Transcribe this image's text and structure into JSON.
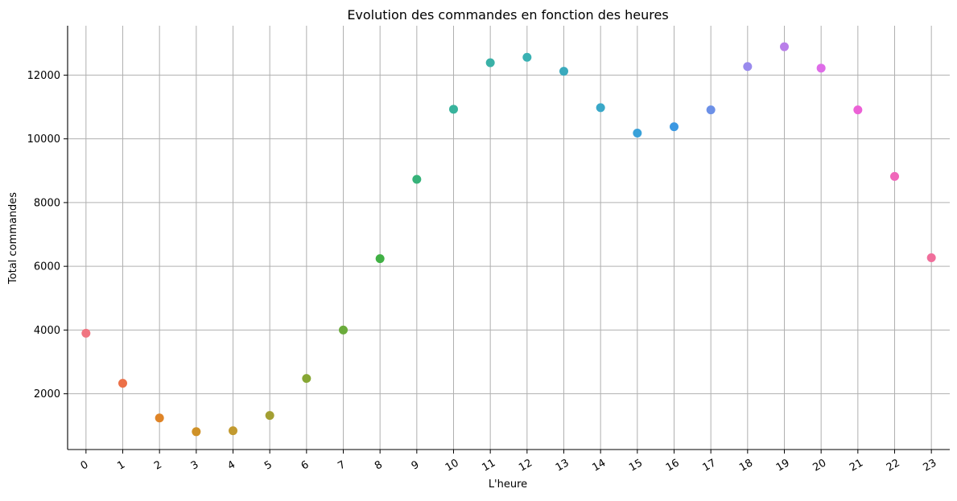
{
  "chart_data": {
    "type": "scatter",
    "title": "Evolution des commandes en fonction des heures",
    "xlabel": "L'heure",
    "ylabel": "Total  commandes",
    "x": [
      "0",
      "1",
      "2",
      "3",
      "4",
      "5",
      "6",
      "7",
      "8",
      "9",
      "10",
      "11",
      "12",
      "13",
      "14",
      "15",
      "16",
      "17",
      "18",
      "19",
      "20",
      "21",
      "22",
      "23"
    ],
    "y": [
      3900,
      2330,
      1240,
      810,
      840,
      1320,
      2480,
      4000,
      6240,
      8730,
      10930,
      12390,
      12560,
      12120,
      10980,
      10180,
      10380,
      10910,
      12270,
      12890,
      12220,
      10910,
      8820,
      6270
    ],
    "colors": [
      "#f07581",
      "#ec7048",
      "#df8427",
      "#cf9127",
      "#c29a2f",
      "#a39f32",
      "#86a633",
      "#6aab3b",
      "#40b044",
      "#36b279",
      "#38b39c",
      "#3ab1a7",
      "#3ab1b3",
      "#3aaabd",
      "#3aa8c8",
      "#39a1d9",
      "#3b98e2",
      "#6c90e7",
      "#998aed",
      "#b97ee9",
      "#de6ce8",
      "#ec61d6",
      "#f067ba",
      "#f06e9b"
    ],
    "y_ticks": [
      2000,
      4000,
      6000,
      8000,
      10000,
      12000
    ],
    "ylim": [
      250,
      13550
    ],
    "xlim": [
      -0.5,
      23.5
    ],
    "grid": true,
    "x_tick_rotation": -30
  }
}
